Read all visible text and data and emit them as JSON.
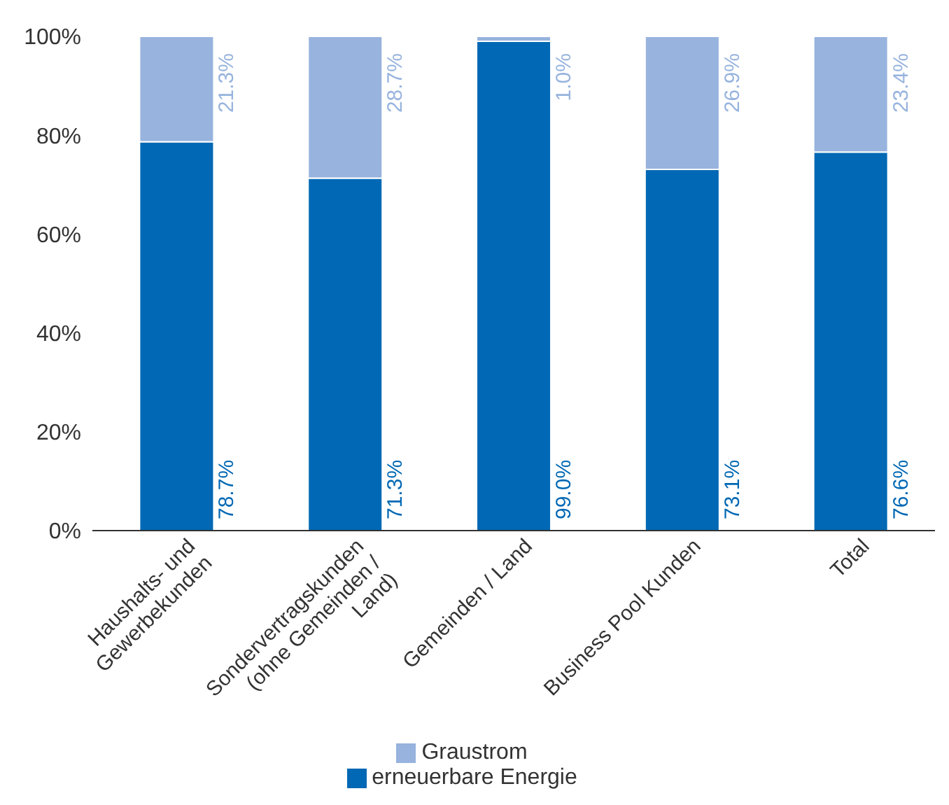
{
  "chart_data": {
    "type": "bar",
    "stacked": true,
    "categories": [
      "Haushalts- und Gewerbekunden",
      "Sondervertragskunden (ohne Gemeinden / Land)",
      "Gemeinden / Land",
      "Business Pool Kunden",
      "Total"
    ],
    "series": [
      {
        "name": "erneuerbare Energie",
        "color": "#0068b4",
        "values": [
          78.7,
          71.3,
          99.0,
          73.1,
          76.6
        ],
        "value_labels": [
          "78.7%",
          "71.3%",
          "99.0%",
          "73.1%",
          "76.6%"
        ]
      },
      {
        "name": "Graustrom",
        "color": "#97b3de",
        "values": [
          21.3,
          28.7,
          1.0,
          26.9,
          23.4
        ],
        "value_labels": [
          "21.3%",
          "28.7%",
          "1.0%",
          "26.9%",
          "23.4%"
        ]
      }
    ],
    "ylim": [
      0,
      100
    ],
    "yticks": [
      {
        "value": 0,
        "label": "0%"
      },
      {
        "value": 20,
        "label": "20%"
      },
      {
        "value": 40,
        "label": "40%"
      },
      {
        "value": 60,
        "label": "60%"
      },
      {
        "value": 80,
        "label": "80%"
      },
      {
        "value": 100,
        "label": "100%"
      }
    ],
    "grid": false,
    "legend": "bottom"
  }
}
